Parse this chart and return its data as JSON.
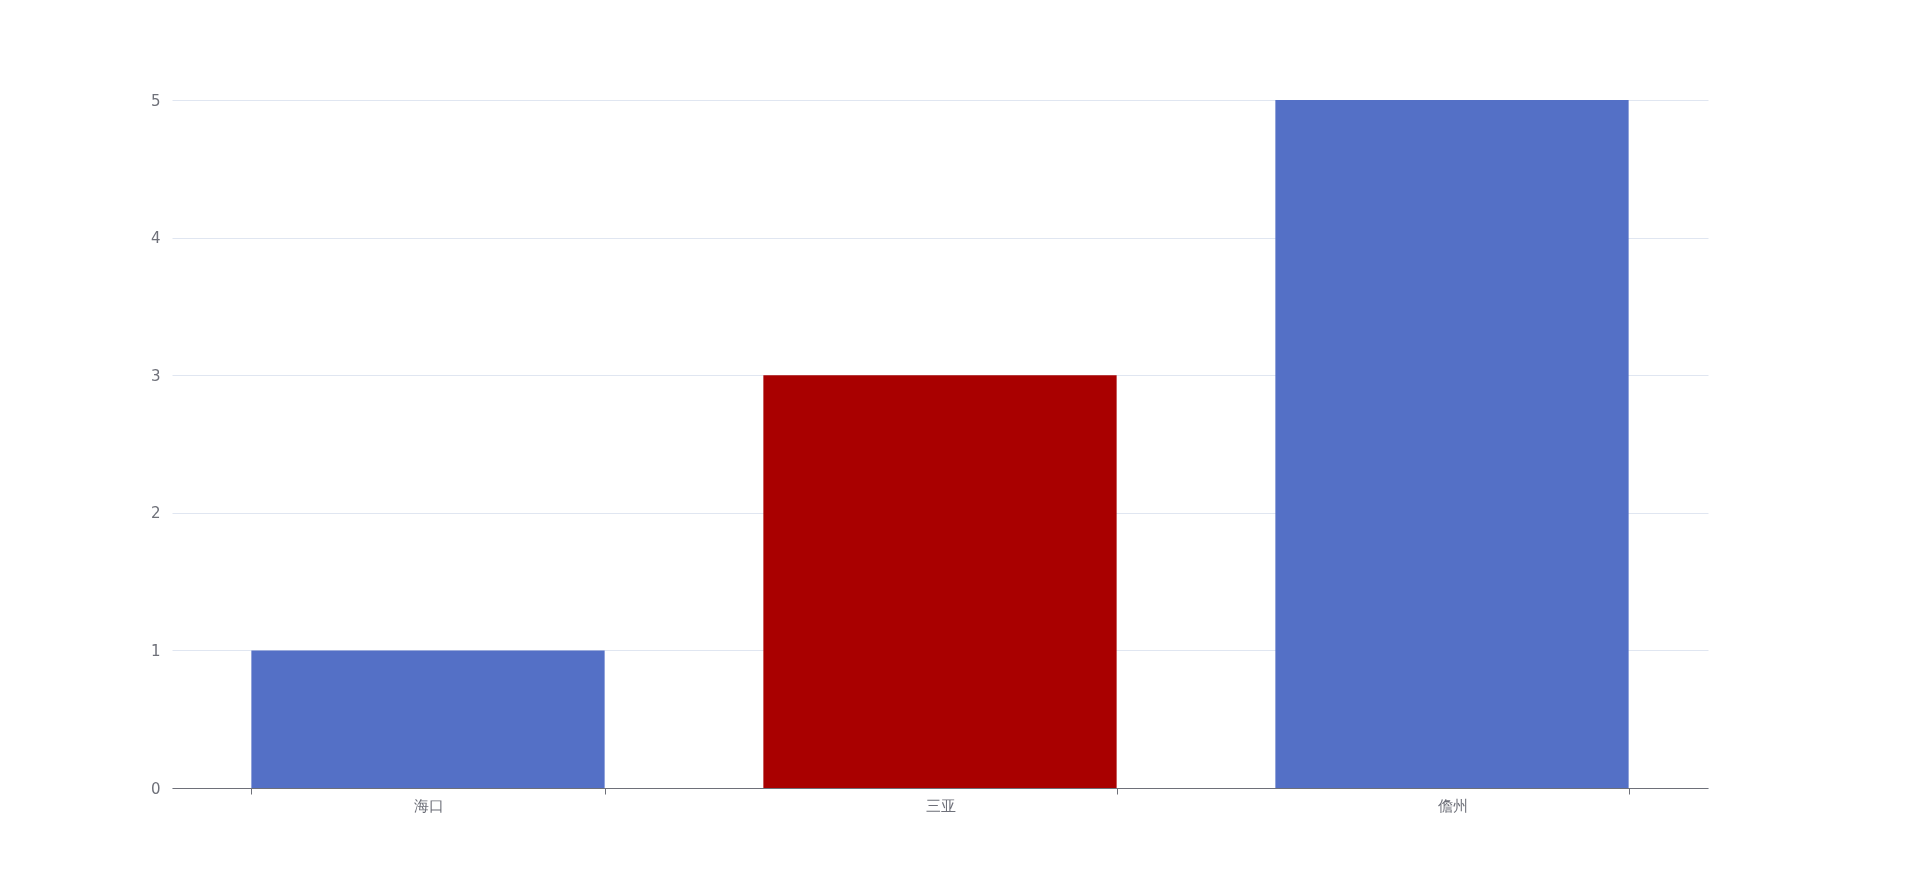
{
  "chart_data": {
    "type": "bar",
    "categories": [
      "海口",
      "三亚",
      "儋州"
    ],
    "values": [
      1,
      3,
      5
    ],
    "colors": [
      "#5470c6",
      "#a90000",
      "#5470c6"
    ],
    "ylim": [
      0,
      5
    ],
    "yticks": [
      0,
      1,
      2,
      3,
      4,
      5
    ],
    "grid": "y"
  }
}
